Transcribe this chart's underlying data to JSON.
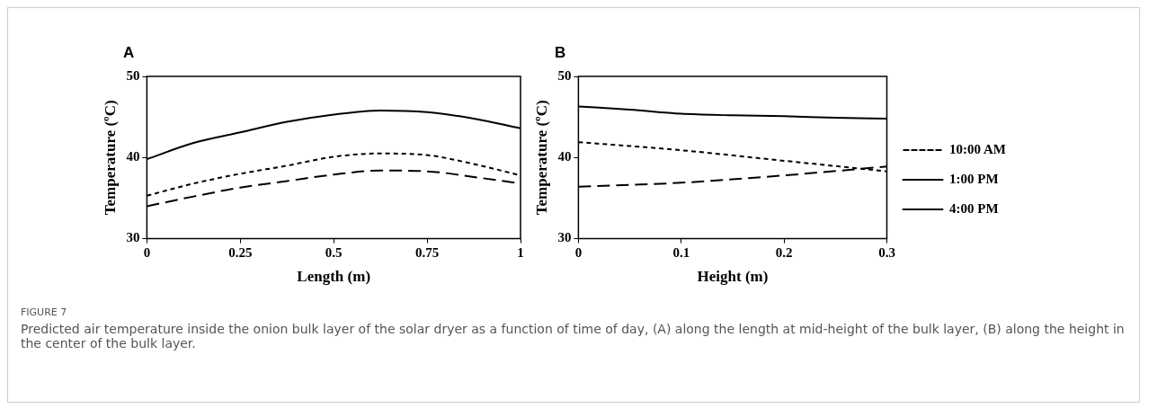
{
  "chart_data": [
    {
      "type": "line",
      "title": "A",
      "xlabel": "Length (m)",
      "ylabel": "Temperature (ºC)",
      "xlim": [
        0,
        1
      ],
      "xticks": [
        0,
        0.25,
        0.5,
        0.75,
        1
      ],
      "ylim": [
        30,
        50
      ],
      "yticks": [
        30,
        40,
        50
      ],
      "grid": false,
      "legend": false,
      "marker": "none",
      "series": [
        {
          "color": "#000000",
          "line_style": "dashed",
          "x": [
            0,
            0.125,
            0.25,
            0.375,
            0.5,
            0.625,
            0.75,
            0.875,
            1
          ],
          "values": [
            35.3,
            36.8,
            38,
            39,
            40.1,
            40.5,
            40.3,
            39.2,
            37.8
          ]
        },
        {
          "color": "#000000",
          "line_style": "solid",
          "x": [
            0,
            0.125,
            0.25,
            0.375,
            0.5,
            0.625,
            0.75,
            0.875,
            1
          ],
          "values": [
            39.8,
            41.8,
            43.1,
            44.4,
            45.3,
            45.8,
            45.6,
            44.8,
            43.6
          ]
        },
        {
          "color": "#000000",
          "line_style": "long-dashed",
          "x": [
            0,
            0.125,
            0.25,
            0.375,
            0.5,
            0.625,
            0.75,
            0.875,
            1
          ],
          "values": [
            34,
            35.2,
            36.3,
            37.1,
            37.9,
            38.4,
            38.3,
            37.6,
            36.8
          ]
        }
      ],
      "annotations": [
        "FIGURE 7",
        "Predicted air temperature inside the onion bulk layer of the solar dryer as a function of time of day, (A) along the length at mid-height of the bulk layer, (B) along the height in the center of the bulk layer."
      ]
    },
    {
      "type": "line",
      "title": "B",
      "xlabel": "Height (m)",
      "ylabel": "Temperature (ºC)",
      "xlim": [
        0,
        0.3
      ],
      "xticks": [
        0,
        0.1,
        0.2,
        0.3
      ],
      "ylim": [
        30,
        50
      ],
      "yticks": [
        30,
        40,
        50
      ],
      "grid": false,
      "legend": "right",
      "marker": "none",
      "series": [
        {
          "name": "10:00 AM",
          "color": "#000000",
          "line_style": "dashed",
          "x": [
            0,
            0.1,
            0.2,
            0.3
          ],
          "values": [
            41.9,
            40.9,
            39.6,
            38.3
          ]
        },
        {
          "name": "1:00 PM",
          "color": "#000000",
          "line_style": "solid",
          "x": [
            0,
            0.05,
            0.1,
            0.15,
            0.2,
            0.25,
            0.3
          ],
          "values": [
            46.3,
            45.9,
            45.4,
            45.2,
            45.1,
            44.9,
            44.8
          ]
        },
        {
          "name": "4:00 PM",
          "color": "#000000",
          "line_style": "long-dashed",
          "x": [
            0,
            0.1,
            0.2,
            0.3
          ],
          "values": [
            36.4,
            36.9,
            37.8,
            38.9
          ]
        }
      ]
    }
  ]
}
